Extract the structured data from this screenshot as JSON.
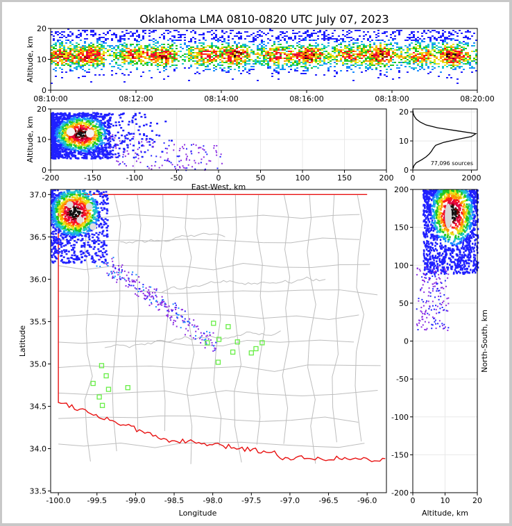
{
  "title": "Oklahoma LMA 0810-0820 UTC July 07, 2023",
  "colors": {
    "boundary": "#e81010",
    "county": "#bdbdbd",
    "station": "#66ee44",
    "axis": "#000000",
    "grid": "#e8e8e8"
  },
  "chart_data": [
    {
      "id": "time-height",
      "type": "heatmap",
      "ylabel": "Altitude, km",
      "ylim": [
        0,
        20
      ],
      "yticks": [
        0,
        10,
        20
      ],
      "xticks": [
        "08:10:00",
        "08:12:00",
        "08:14:00",
        "08:16:00",
        "08:18:00",
        "08:20:00"
      ],
      "density": "sources concentrated between ~3 and ~17 km across the full interval, peak near 10-13 km"
    },
    {
      "id": "ew-altitude",
      "type": "heatmap",
      "xlabel": "East-West, km",
      "ylabel": "Altitude, km",
      "xlim": [
        -200,
        200
      ],
      "ylim": [
        0,
        20
      ],
      "xticks": [
        -200,
        -150,
        -100,
        -50,
        0,
        50,
        100,
        150,
        200
      ],
      "yticks": [
        0,
        10,
        20
      ],
      "density": "dense core at x -200 to -130 km, 5-18 km altitude; sparse trail to about x 0"
    },
    {
      "id": "altitude-histogram",
      "type": "line",
      "xlim": [
        0,
        2200
      ],
      "ylim": [
        0,
        21
      ],
      "xticks": [
        0,
        2000
      ],
      "yticks": [
        0,
        10,
        20
      ],
      "annotation": "77,096 sources",
      "profile": [
        {
          "alt": 0.5,
          "count": 10
        },
        {
          "alt": 1.5,
          "count": 40
        },
        {
          "alt": 2.5,
          "count": 120
        },
        {
          "alt": 3.5,
          "count": 300
        },
        {
          "alt": 4.5,
          "count": 450
        },
        {
          "alt": 5.5,
          "count": 560
        },
        {
          "alt": 6.5,
          "count": 640
        },
        {
          "alt": 7.5,
          "count": 700
        },
        {
          "alt": 8.5,
          "count": 780
        },
        {
          "alt": 9.5,
          "count": 1050
        },
        {
          "alt": 10.5,
          "count": 1500
        },
        {
          "alt": 11.5,
          "count": 2000
        },
        {
          "alt": 12.5,
          "count": 2150
        },
        {
          "alt": 13.5,
          "count": 1500
        },
        {
          "alt": 14.5,
          "count": 850
        },
        {
          "alt": 15.5,
          "count": 450
        },
        {
          "alt": 16.5,
          "count": 250
        },
        {
          "alt": 17.5,
          "count": 120
        },
        {
          "alt": 18.5,
          "count": 50
        },
        {
          "alt": 19.5,
          "count": 15
        },
        {
          "alt": 20.5,
          "count": 3
        }
      ]
    },
    {
      "id": "plan-view",
      "type": "heatmap",
      "xlabel": "Longitude",
      "ylabel": "Latitude",
      "xlim": [
        -100.1,
        -95.75
      ],
      "ylim": [
        33.48,
        37.06
      ],
      "xticks": [
        "-100.0",
        "-99.5",
        "-99.0",
        "-98.5",
        "-98.0",
        "-97.5",
        "-97.0",
        "-96.5",
        "-96.0"
      ],
      "yticks": [
        "33.5",
        "34.0",
        "34.5",
        "35.0",
        "35.5",
        "36.0",
        "36.5",
        "37.0"
      ],
      "density": "dense core near -100.1 to -99.4 lon, 36.3 to 37.0 lat; sparse trail toward -98.0 lon, 35.2 lat",
      "stations": [
        {
          "lon": -99.55,
          "lat": 34.77
        },
        {
          "lon": -99.47,
          "lat": 34.61
        },
        {
          "lon": -99.43,
          "lat": 34.51
        },
        {
          "lon": -99.44,
          "lat": 34.98
        },
        {
          "lon": -99.38,
          "lat": 34.86
        },
        {
          "lon": -99.35,
          "lat": 34.7
        },
        {
          "lon": -99.1,
          "lat": 34.72
        },
        {
          "lon": -97.99,
          "lat": 35.48
        },
        {
          "lon": -97.8,
          "lat": 35.44
        },
        {
          "lon": -97.92,
          "lat": 35.29
        },
        {
          "lon": -98.07,
          "lat": 35.25
        },
        {
          "lon": -97.68,
          "lat": 35.26
        },
        {
          "lon": -97.74,
          "lat": 35.14
        },
        {
          "lon": -97.93,
          "lat": 35.02
        },
        {
          "lon": -97.5,
          "lat": 35.13
        },
        {
          "lon": -97.44,
          "lat": 35.18
        },
        {
          "lon": -97.36,
          "lat": 35.25
        }
      ]
    },
    {
      "id": "ns-altitude",
      "type": "heatmap",
      "xlabel": "Altitude, km",
      "ylabel": "North-South, km",
      "xlim": [
        0,
        20
      ],
      "ylim": [
        -200,
        200
      ],
      "xticks": [
        0,
        10,
        20
      ],
      "yticks": [
        200,
        150,
        100,
        50,
        0,
        -50,
        -100,
        -150,
        -200
      ],
      "density": "dense core at y 130 to 200 km, 5-18 km altitude; sparse trail down to about y 0"
    }
  ]
}
